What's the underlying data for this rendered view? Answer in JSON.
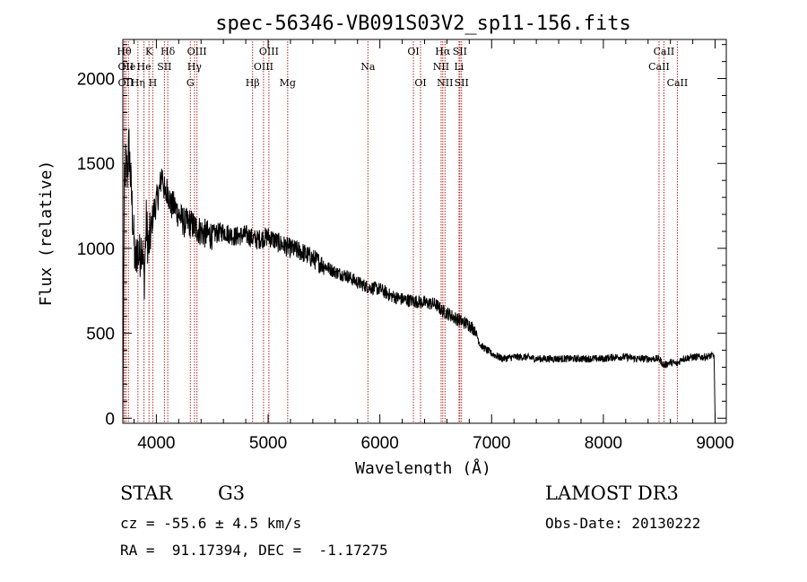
{
  "chart_data": {
    "type": "line",
    "title": "spec-56346-VB091S03V2_sp11-156.fits",
    "xlabel": "Wavelength (Å)",
    "ylabel": "Flux (relative)",
    "xlim": [
      3700,
      9100
    ],
    "ylim": [
      -30,
      2230
    ],
    "xticks": [
      4000,
      5000,
      6000,
      7000,
      8000,
      9000
    ],
    "yticks": [
      0,
      500,
      1000,
      1500,
      2000
    ],
    "series": [
      {
        "name": "flux",
        "anchors_x": [
          3700,
          3712,
          3725,
          3740,
          3755,
          3770,
          3790,
          3810,
          3830,
          3850,
          3870,
          3890,
          3910,
          3930,
          3950,
          3970,
          3990,
          4010,
          4030,
          4050,
          4080,
          4100,
          4130,
          4160,
          4200,
          4250,
          4300,
          4350,
          4400,
          4450,
          4500,
          4600,
          4700,
          4800,
          4860,
          4900,
          5000,
          5100,
          5200,
          5300,
          5400,
          5500,
          5600,
          5700,
          5800,
          5900,
          6000,
          6100,
          6200,
          6300,
          6400,
          6500,
          6560,
          6600,
          6700,
          6800,
          6850,
          6900,
          7000,
          7100,
          7200,
          7300,
          7400,
          7500,
          7600,
          7700,
          7800,
          7900,
          8000,
          8100,
          8200,
          8300,
          8400,
          8500,
          8540,
          8600,
          8662,
          8700,
          8800,
          8900,
          8990,
          9000
        ],
        "anchors_y": [
          0,
          1300,
          1500,
          1450,
          1600,
          1400,
          1150,
          900,
          1000,
          950,
          1050,
          800,
          1150,
          1000,
          1100,
          1200,
          1250,
          1300,
          1350,
          1450,
          1300,
          1350,
          1250,
          1250,
          1200,
          1150,
          1150,
          1120,
          1100,
          1080,
          1080,
          1100,
          1070,
          1080,
          1060,
          1050,
          1070,
          1030,
          1000,
          980,
          940,
          900,
          860,
          840,
          800,
          770,
          760,
          720,
          700,
          690,
          680,
          670,
          630,
          620,
          580,
          550,
          520,
          430,
          380,
          350,
          360,
          360,
          350,
          350,
          350,
          350,
          350,
          350,
          350,
          360,
          360,
          350,
          350,
          350,
          310,
          330,
          320,
          350,
          360,
          360,
          370,
          0
        ],
        "noise": [
          [
            3700,
            3950,
            150
          ],
          [
            3950,
            4500,
            90
          ],
          [
            4500,
            5500,
            60
          ],
          [
            5500,
            6850,
            40
          ],
          [
            6850,
            9000,
            22
          ]
        ]
      }
    ],
    "spectral_lines": [
      {
        "x": 3712,
        "label": "Hθ",
        "row": 1
      },
      {
        "x": 3727,
        "label": "OII",
        "row": 2
      },
      {
        "x": 3727,
        "label": "OII",
        "row": 3
      },
      {
        "x": 3750,
        "label": "He",
        "row": 2
      },
      {
        "x": 3835,
        "label": "Hη",
        "row": 3
      },
      {
        "x": 3889,
        "label": "He",
        "row": 2
      },
      {
        "x": 3934,
        "label": "K",
        "row": 1
      },
      {
        "x": 3968,
        "label": "H",
        "row": 3
      },
      {
        "x": 4072,
        "label": "SII",
        "row": 2
      },
      {
        "x": 4102,
        "label": "Hδ",
        "row": 1
      },
      {
        "x": 4304,
        "label": "G",
        "row": 3
      },
      {
        "x": 4341,
        "label": "Hγ",
        "row": 2
      },
      {
        "x": 4363,
        "label": "OIII",
        "row": 1
      },
      {
        "x": 4861,
        "label": "Hβ",
        "row": 3
      },
      {
        "x": 4959,
        "label": "OIII",
        "row": 2
      },
      {
        "x": 5007,
        "label": "OIII",
        "row": 1
      },
      {
        "x": 5175,
        "label": "Mg",
        "row": 3
      },
      {
        "x": 5893,
        "label": "Na",
        "row": 2
      },
      {
        "x": 6300,
        "label": "OI",
        "row": 1
      },
      {
        "x": 6364,
        "label": "OI",
        "row": 3
      },
      {
        "x": 6548,
        "label": "NII",
        "row": 2
      },
      {
        "x": 6563,
        "label": "Hα",
        "row": 1
      },
      {
        "x": 6583,
        "label": "NII",
        "row": 3
      },
      {
        "x": 6708,
        "label": "Li",
        "row": 2
      },
      {
        "x": 6716,
        "label": "SII",
        "row": 1
      },
      {
        "x": 6731,
        "label": "SII",
        "row": 3
      },
      {
        "x": 8498,
        "label": "CaII",
        "row": 2
      },
      {
        "x": 8542,
        "label": "CaII",
        "row": 1
      },
      {
        "x": 8662,
        "label": "CaII",
        "row": 3
      }
    ]
  },
  "info": {
    "class": "STAR",
    "subclass": "G3",
    "survey": "LAMOST DR3",
    "redshift": "cz = -55.6 ± 4.5 km/s",
    "obs_date": "Obs-Date: 20130222",
    "coords": "RA =  91.17394, DEC =  -1.17275"
  },
  "colors": {
    "spectrum": "#000000",
    "line_marker": "#b22222",
    "axes": "#000000"
  }
}
